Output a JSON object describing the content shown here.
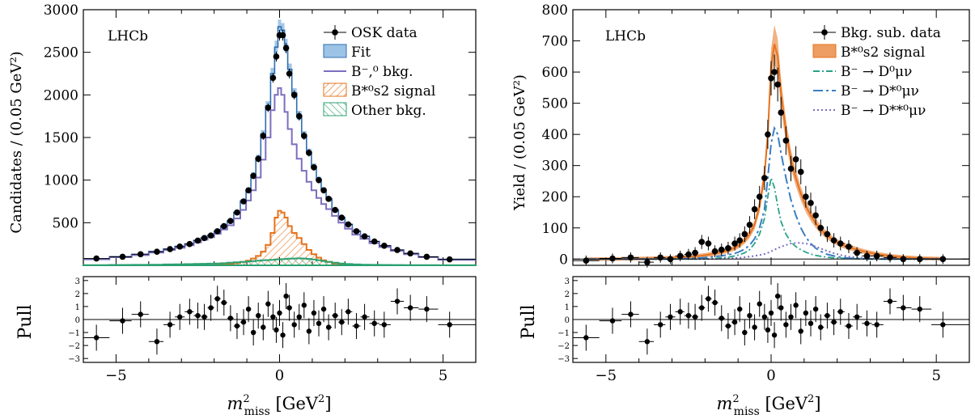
{
  "figure": {
    "x_axis_label": {
      "main": "m",
      "sup": "2",
      "sub": "miss",
      "unit": " [GeV",
      "unit_sup": "2",
      "unit_close": "]"
    },
    "pull_label": "Pull",
    "x_ticks": [
      "−5",
      "0",
      "5"
    ],
    "pull_ticks": [
      "3",
      "2",
      "1",
      "0",
      "−1",
      "−2",
      "−3"
    ]
  },
  "colors": {
    "data": "#000000",
    "fit": "#5b9bd5",
    "b_bkg": "#7a6fbf",
    "signal": "#e6731e",
    "other_bkg": "#2aa070",
    "d0": "#2aa38a",
    "dstar": "#3a7fc4",
    "dstarstar": "#7a6fbf"
  },
  "chart_data": [
    {
      "type": "line",
      "panel": "left",
      "watermark": "LHCb",
      "ylabel": "Candidates / (0.05 GeV²)",
      "xlim": [
        -6,
        6
      ],
      "ylim": [
        0,
        3000
      ],
      "y_ticks": [
        500,
        1000,
        1500,
        2000,
        2500,
        3000
      ],
      "legend_placement": "top-right",
      "legend": [
        {
          "label": "OSK data",
          "style": "data"
        },
        {
          "label": "Fit",
          "style": "fit"
        },
        {
          "label": "B⁻,⁰ bkg.",
          "style": "b_bkg"
        },
        {
          "label": "B*⁰s2 signal",
          "style": "signal"
        },
        {
          "label": "Other bkg.",
          "style": "other_bkg"
        }
      ],
      "x": [
        -5.6,
        -4.8,
        -4.25,
        -3.75,
        -3.35,
        -3.05,
        -2.75,
        -2.5,
        -2.3,
        -2.1,
        -1.9,
        -1.7,
        -1.5,
        -1.3,
        -1.1,
        -0.95,
        -0.8,
        -0.65,
        -0.5,
        -0.35,
        -0.2,
        -0.1,
        0,
        0.1,
        0.2,
        0.3,
        0.45,
        0.6,
        0.75,
        0.9,
        1.05,
        1.2,
        1.35,
        1.5,
        1.7,
        1.9,
        2.1,
        2.35,
        2.6,
        2.9,
        3.2,
        3.6,
        4.0,
        4.5,
        5.2
      ],
      "series": [
        {
          "name": "OSK data",
          "values": [
            80,
            100,
            130,
            160,
            190,
            220,
            250,
            290,
            320,
            350,
            400,
            460,
            520,
            620,
            750,
            880,
            1050,
            1250,
            1520,
            1850,
            2200,
            2450,
            2700,
            2700,
            2550,
            2250,
            2000,
            1750,
            1520,
            1320,
            1150,
            1000,
            880,
            780,
            650,
            560,
            480,
            400,
            340,
            280,
            230,
            180,
            140,
            100,
            70
          ]
        },
        {
          "name": "Fit",
          "values": [
            78,
            102,
            128,
            162,
            192,
            222,
            252,
            292,
            322,
            352,
            402,
            462,
            522,
            622,
            755,
            885,
            1060,
            1260,
            1540,
            1870,
            2250,
            2560,
            2800,
            2760,
            2580,
            2300,
            2020,
            1760,
            1530,
            1330,
            1160,
            1010,
            890,
            780,
            650,
            560,
            480,
            400,
            340,
            280,
            230,
            180,
            140,
            100,
            70
          ]
        },
        {
          "name": "B-,0 bkg.",
          "values": [
            70,
            95,
            120,
            150,
            180,
            205,
            235,
            270,
            300,
            330,
            370,
            420,
            470,
            550,
            650,
            760,
            880,
            1030,
            1240,
            1500,
            1820,
            2000,
            2080,
            2000,
            1800,
            1600,
            1420,
            1250,
            1110,
            980,
            880,
            790,
            720,
            660,
            580,
            500,
            430,
            360,
            310,
            260,
            215,
            170,
            130,
            95,
            65
          ]
        },
        {
          "name": "B*0s2 signal",
          "values": [
            0,
            0,
            0,
            0,
            0,
            0,
            0,
            0,
            0,
            0,
            5,
            10,
            15,
            25,
            40,
            55,
            80,
            110,
            160,
            240,
            380,
            560,
            640,
            620,
            560,
            460,
            380,
            320,
            250,
            180,
            130,
            90,
            60,
            40,
            20,
            10,
            5,
            0,
            0,
            0,
            0,
            0,
            0,
            0,
            0
          ]
        },
        {
          "name": "Other bkg.",
          "values": [
            3,
            5,
            6,
            8,
            10,
            12,
            14,
            16,
            18,
            20,
            22,
            25,
            30,
            35,
            40,
            45,
            50,
            55,
            60,
            62,
            65,
            68,
            70,
            72,
            75,
            78,
            80,
            82,
            80,
            75,
            68,
            60,
            50,
            40,
            30,
            22,
            15,
            10,
            8,
            6,
            5,
            4,
            3,
            2,
            1
          ]
        }
      ],
      "pull": [
        -1.4,
        -0.1,
        0.4,
        -1.7,
        -0.4,
        0.2,
        0.6,
        0.3,
        0.2,
        0.9,
        1.6,
        1.3,
        0.1,
        -0.5,
        -0.2,
        0.8,
        -1.0,
        0.3,
        -0.6,
        1.2,
        0.2,
        -0.8,
        0.5,
        -1.2,
        1.8,
        0.9,
        -0.4,
        0.2,
        1.1,
        -0.9,
        0.5,
        -0.3,
        0.8,
        -0.6,
        0.3,
        -0.2,
        0.6,
        -0.5,
        0.2,
        -0.3,
        -0.4,
        1.4,
        0.9,
        0.8,
        -0.4
      ]
    },
    {
      "type": "line",
      "panel": "right",
      "watermark": "LHCb",
      "ylabel": "Yield / (0.05 GeV²)",
      "xlim": [
        -6,
        6
      ],
      "ylim": [
        -20,
        800
      ],
      "y_ticks": [
        0,
        100,
        200,
        300,
        400,
        500,
        600,
        700,
        800
      ],
      "legend_placement": "top-right",
      "legend": [
        {
          "label": "Bkg. sub. data",
          "style": "data"
        },
        {
          "label": "B*⁰s2 signal",
          "style": "signal"
        },
        {
          "label": "B⁻ → D⁰μν",
          "style": "d0"
        },
        {
          "label": "B⁻ → D*⁰μν",
          "style": "dstar"
        },
        {
          "label": "B⁻ → D**⁰μν",
          "style": "dstarstar"
        }
      ],
      "x": [
        -5.6,
        -4.8,
        -4.25,
        -3.75,
        -3.35,
        -3.05,
        -2.75,
        -2.5,
        -2.3,
        -2.1,
        -1.9,
        -1.7,
        -1.5,
        -1.3,
        -1.1,
        -0.95,
        -0.8,
        -0.65,
        -0.5,
        -0.35,
        -0.2,
        -0.1,
        0,
        0.1,
        0.2,
        0.3,
        0.45,
        0.6,
        0.75,
        0.9,
        1.05,
        1.2,
        1.35,
        1.5,
        1.7,
        1.9,
        2.1,
        2.35,
        2.6,
        2.9,
        3.2,
        3.6,
        4.0,
        4.5,
        5.2
      ],
      "series": [
        {
          "name": "Bkg. sub. data",
          "values": [
            -5,
            2,
            5,
            -10,
            5,
            0,
            10,
            15,
            20,
            55,
            50,
            25,
            30,
            35,
            50,
            60,
            80,
            110,
            160,
            200,
            260,
            400,
            580,
            600,
            560,
            470,
            380,
            290,
            320,
            280,
            200,
            180,
            140,
            100,
            80,
            60,
            50,
            40,
            20,
            10,
            10,
            5,
            0,
            0,
            0
          ]
        },
        {
          "name": "B*0s2 signal",
          "values": [
            0,
            0,
            1,
            2,
            3,
            4,
            5,
            7,
            9,
            11,
            14,
            18,
            22,
            28,
            36,
            46,
            60,
            80,
            110,
            170,
            270,
            400,
            620,
            690,
            650,
            530,
            410,
            320,
            260,
            210,
            170,
            140,
            115,
            95,
            75,
            60,
            48,
            38,
            30,
            22,
            16,
            10,
            6,
            3,
            1
          ]
        },
        {
          "name": "B- → D0μν",
          "values": [
            0,
            0,
            0,
            0,
            0,
            0,
            0,
            0,
            0,
            0,
            1,
            2,
            4,
            6,
            10,
            14,
            20,
            30,
            50,
            80,
            130,
            200,
            260,
            230,
            170,
            120,
            80,
            55,
            40,
            30,
            22,
            16,
            12,
            9,
            6,
            4,
            3,
            2,
            1,
            0,
            0,
            0,
            0,
            0,
            0
          ]
        },
        {
          "name": "B- → D*0μν",
          "values": [
            0,
            0,
            0,
            0,
            0,
            0,
            1,
            2,
            3,
            4,
            6,
            8,
            10,
            14,
            18,
            24,
            32,
            45,
            65,
            100,
            160,
            260,
            370,
            420,
            400,
            340,
            260,
            190,
            140,
            100,
            70,
            50,
            35,
            25,
            15,
            10,
            6,
            3,
            2,
            1,
            0,
            0,
            0,
            0,
            0
          ]
        },
        {
          "name": "B- → D**0μν",
          "values": [
            0,
            0,
            0,
            0,
            0,
            0,
            0,
            0,
            0,
            0,
            0,
            0,
            1,
            2,
            3,
            4,
            6,
            8,
            10,
            13,
            16,
            20,
            25,
            30,
            35,
            40,
            45,
            50,
            52,
            52,
            50,
            46,
            40,
            34,
            26,
            19,
            13,
            8,
            5,
            3,
            2,
            1,
            0,
            0,
            0
          ]
        }
      ],
      "pull": [
        -1.4,
        -0.1,
        0.4,
        -1.7,
        -0.4,
        0.2,
        0.6,
        0.3,
        0.2,
        0.9,
        1.6,
        1.3,
        0.1,
        -0.5,
        -0.2,
        0.8,
        -1.0,
        0.3,
        -0.6,
        1.2,
        0.2,
        -0.8,
        0.5,
        -1.2,
        1.8,
        0.9,
        -0.4,
        0.2,
        1.1,
        -0.9,
        0.5,
        -0.3,
        0.8,
        -0.6,
        0.3,
        -0.2,
        0.6,
        -0.5,
        0.2,
        -0.3,
        -0.4,
        1.4,
        0.9,
        0.8,
        -0.4
      ]
    }
  ]
}
